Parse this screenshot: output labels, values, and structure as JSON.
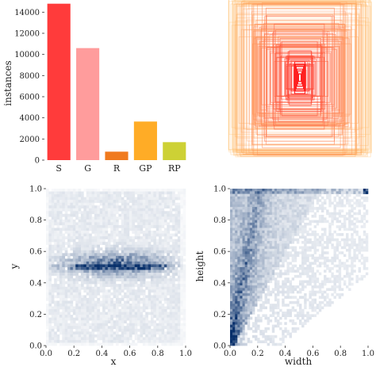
{
  "chart_data": [
    {
      "type": "bar",
      "ylabel": "instances",
      "categories": [
        "S",
        "G",
        "R",
        "GP",
        "RP"
      ],
      "values": [
        14800,
        10600,
        800,
        3650,
        1700
      ],
      "colors": [
        "#ff3b3b",
        "#ff9c9c",
        "#f07a1e",
        "#ffac26",
        "#cdd135"
      ],
      "yticks": [
        0,
        2000,
        4000,
        6000,
        8000,
        10000,
        12000,
        14000
      ],
      "ylim": [
        0,
        15000
      ]
    },
    {
      "type": "scatter",
      "description_kind": "anchor box outlines centered in image",
      "color_outer": "#f0b060",
      "color_inner": "#ff3030"
    },
    {
      "type": "heatmap",
      "xlabel": "x",
      "ylabel": "y",
      "xlim": [
        0,
        1
      ],
      "ylim": [
        0,
        1
      ],
      "xticks": [
        0.0,
        0.2,
        0.4,
        0.6,
        0.8,
        1.0
      ],
      "yticks": [
        0.0,
        0.2,
        0.4,
        0.6,
        0.8,
        1.0
      ],
      "color": "#1f77c4"
    },
    {
      "type": "heatmap",
      "xlabel": "width",
      "ylabel": "height",
      "xlim": [
        0,
        1
      ],
      "ylim": [
        0,
        1
      ],
      "xticks": [
        0.0,
        0.2,
        0.4,
        0.6,
        0.8,
        1.0
      ],
      "yticks": [
        0.0,
        0.2,
        0.4,
        0.6,
        0.8,
        1.0
      ],
      "color": "#1f77c4"
    }
  ]
}
